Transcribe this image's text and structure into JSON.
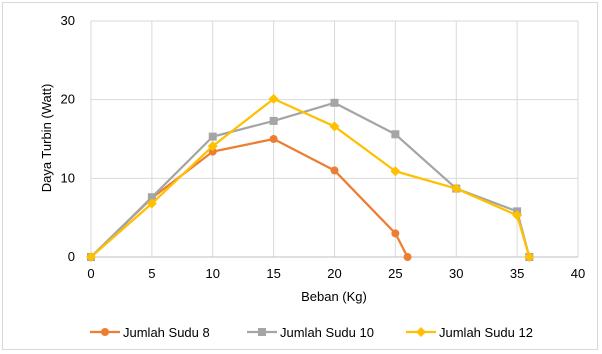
{
  "chart_data": {
    "type": "line",
    "title": "",
    "xlabel": "Beban (Kg)",
    "ylabel": "Daya Turbin (Watt)",
    "xlim": [
      0,
      40
    ],
    "ylim": [
      0,
      30
    ],
    "x_ticks": [
      0,
      5,
      10,
      15,
      20,
      25,
      30,
      35,
      40
    ],
    "y_ticks": [
      0,
      10,
      20,
      30
    ],
    "grid": "vertical-and-horizontal",
    "legend_position": "bottom",
    "series": [
      {
        "name": "Jumlah Sudu 8",
        "color": "#ED7D31",
        "marker": "circle",
        "points": [
          [
            0,
            0
          ],
          [
            5,
            7.5
          ],
          [
            10,
            13.4
          ],
          [
            15,
            15.0
          ],
          [
            20,
            11.0
          ],
          [
            25,
            3.0
          ],
          [
            26,
            0
          ]
        ]
      },
      {
        "name": "Jumlah Sudu 10",
        "color": "#A5A5A5",
        "marker": "square",
        "points": [
          [
            0,
            0
          ],
          [
            5,
            7.6
          ],
          [
            10,
            15.3
          ],
          [
            15,
            17.3
          ],
          [
            20,
            19.6
          ],
          [
            25,
            15.6
          ],
          [
            30,
            8.7
          ],
          [
            35,
            5.8
          ],
          [
            36,
            0
          ]
        ]
      },
      {
        "name": "Jumlah Sudu 12",
        "color": "#FFC000",
        "marker": "diamond",
        "points": [
          [
            0,
            0
          ],
          [
            5,
            6.8
          ],
          [
            10,
            14.1
          ],
          [
            15,
            20.1
          ],
          [
            20,
            16.6
          ],
          [
            25,
            10.9
          ],
          [
            30,
            8.7
          ],
          [
            35,
            5.3
          ],
          [
            36,
            0
          ]
        ]
      }
    ]
  }
}
